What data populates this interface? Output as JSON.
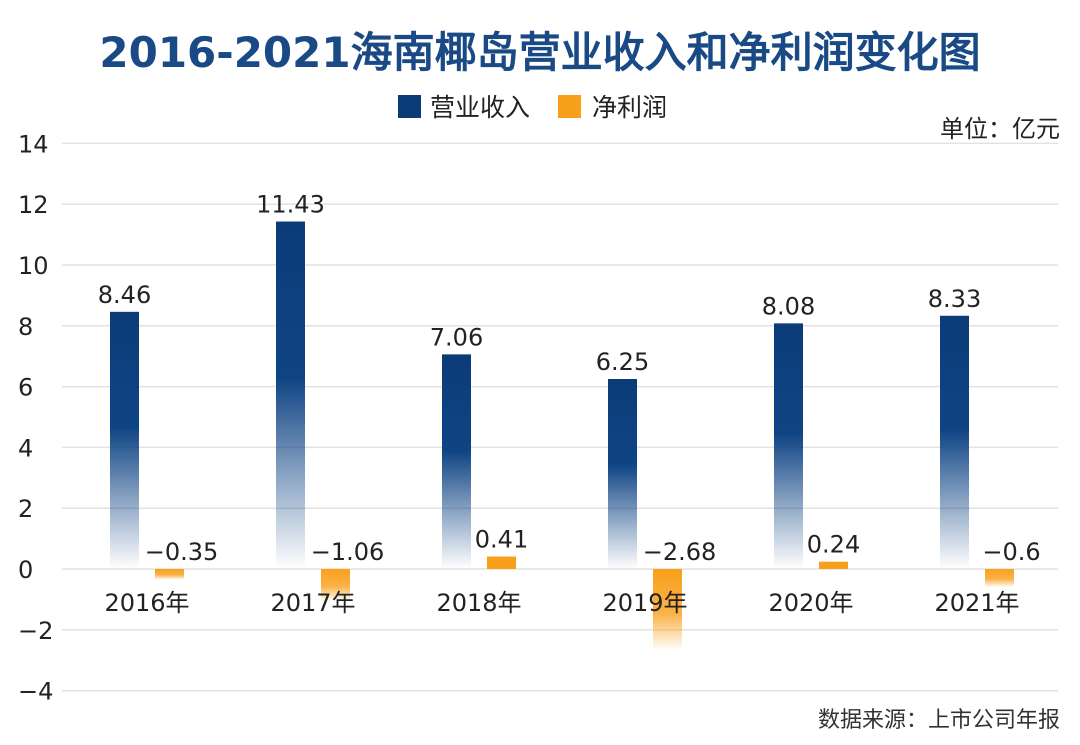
{
  "chart_data": {
    "type": "bar",
    "title": "2016-2021海南椰岛营业收入和净利润变化图",
    "unit": "单位：亿元",
    "source": "数据来源：上市公司年报",
    "categories": [
      "2016年",
      "2017年",
      "2018年",
      "2019年",
      "2020年",
      "2021年"
    ],
    "series": [
      {
        "name": "营业收入",
        "color": "#0b3c78",
        "values": [
          8.46,
          11.43,
          7.06,
          6.25,
          8.08,
          8.33
        ],
        "labels": [
          "8.46",
          "11.43",
          "7.06",
          "6.25",
          "8.08",
          "8.33"
        ]
      },
      {
        "name": "净利润",
        "color": "#f9a01b",
        "values": [
          -0.35,
          -1.06,
          0.41,
          -2.68,
          0.24,
          -0.6
        ],
        "labels": [
          "−0.35",
          "−1.06",
          "0.41",
          "−2.68",
          "0.24",
          "−0.6"
        ]
      }
    ],
    "ylim": [
      -4,
      14
    ],
    "yticks": [
      -4,
      -2,
      0,
      2,
      4,
      6,
      8,
      10,
      12,
      14
    ],
    "ytick_labels": [
      "−4",
      "−2",
      "0",
      "2",
      "4",
      "6",
      "8",
      "10",
      "12",
      "14"
    ],
    "grid": true,
    "legend": "top-center",
    "title_color": "#1a4a85"
  }
}
